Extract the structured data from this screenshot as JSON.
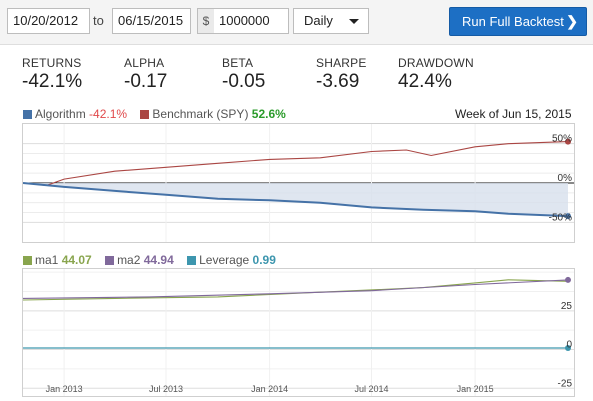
{
  "controls": {
    "start_date": "10/20/2012",
    "to_label": "to",
    "end_date": "06/15/2015",
    "currency_symbol": "$",
    "capital": "1000000",
    "frequency": "Daily",
    "run_button": "Run Full Backtest",
    "run_chevron": "❯"
  },
  "stats": [
    {
      "label": "RETURNS",
      "value": "-42.1%"
    },
    {
      "label": "ALPHA",
      "value": "-0.17"
    },
    {
      "label": "BETA",
      "value": "-0.05"
    },
    {
      "label": "SHARPE",
      "value": "-3.69"
    },
    {
      "label": "DRAWDOWN",
      "value": "42.4%"
    }
  ],
  "main_legend": {
    "algorithm_label": "Algorithm",
    "algorithm_value": "-42.1%",
    "benchmark_label": "Benchmark (SPY)",
    "benchmark_value": "52.6%",
    "week_label": "Week of Jun 15, 2015"
  },
  "lower_legend": {
    "ma1_label": "ma1",
    "ma1_value": "44.07",
    "ma2_label": "ma2",
    "ma2_value": "44.94",
    "leverage_label": "Leverage",
    "leverage_value": "0.99"
  },
  "colors": {
    "algorithm": "#4572a7",
    "benchmark": "#aa4643",
    "ma1": "#89a54e",
    "ma2": "#80699b",
    "leverage": "#3d96ae",
    "algo_fill": "#d7e0ec",
    "positive": "#2b9b2b",
    "negative": "#e0484a",
    "button": "#1d6fc4"
  },
  "chart_data": [
    {
      "type": "line",
      "x_ticks": [
        "Jan 2013",
        "Jul 2013",
        "Jan 2014",
        "Jul 2014",
        "Jan 2015"
      ],
      "y_ticks": [
        "50%",
        "0%",
        "-50%"
      ],
      "ylim": [
        -75,
        75
      ],
      "x_start": "2012-10-20",
      "x_end": "2015-06-15",
      "series": [
        {
          "name": "Algorithm",
          "x": [
            "2012-10-20",
            "2013-01-01",
            "2013-04-01",
            "2013-07-01",
            "2013-10-01",
            "2014-01-01",
            "2014-04-01",
            "2014-07-01",
            "2014-10-01",
            "2015-01-01",
            "2015-03-01",
            "2015-06-15"
          ],
          "values": [
            0,
            -5,
            -10,
            -15,
            -20,
            -22,
            -25,
            -31,
            -34,
            -36,
            -39,
            -42.1
          ]
        },
        {
          "name": "Benchmark (SPY)",
          "x": [
            "2012-10-20",
            "2012-12-01",
            "2013-01-01",
            "2013-04-01",
            "2013-07-01",
            "2013-10-01",
            "2014-01-01",
            "2014-04-01",
            "2014-07-01",
            "2014-09-01",
            "2014-10-15",
            "2015-01-01",
            "2015-03-01",
            "2015-06-15"
          ],
          "values": [
            0,
            -3,
            5,
            15,
            20,
            25,
            30,
            32,
            40,
            42,
            35,
            46,
            50,
            52.6
          ]
        }
      ]
    },
    {
      "type": "line",
      "x_ticks": [
        "Jan 2013",
        "Jul 2013",
        "Jan 2014",
        "Jul 2014",
        "Jan 2015"
      ],
      "y_ticks": [
        "25",
        "0",
        "-25"
      ],
      "ylim": [
        -30,
        52
      ],
      "x_start": "2012-10-20",
      "x_end": "2015-06-15",
      "series": [
        {
          "name": "ma1",
          "x": [
            "2012-10-20",
            "2013-04-01",
            "2013-10-01",
            "2014-04-01",
            "2014-10-01",
            "2015-01-01",
            "2015-03-01",
            "2015-06-15"
          ],
          "values": [
            32,
            33,
            34,
            37,
            40,
            43,
            45,
            44.07
          ]
        },
        {
          "name": "ma2",
          "x": [
            "2012-10-20",
            "2013-06-01",
            "2014-01-01",
            "2014-07-01",
            "2015-01-01",
            "2015-06-15"
          ],
          "values": [
            33,
            34,
            36,
            38,
            42,
            44.94
          ]
        },
        {
          "name": "Leverage",
          "x": [
            "2012-10-20",
            "2015-06-15"
          ],
          "values": [
            0.99,
            0.99
          ]
        }
      ]
    }
  ]
}
